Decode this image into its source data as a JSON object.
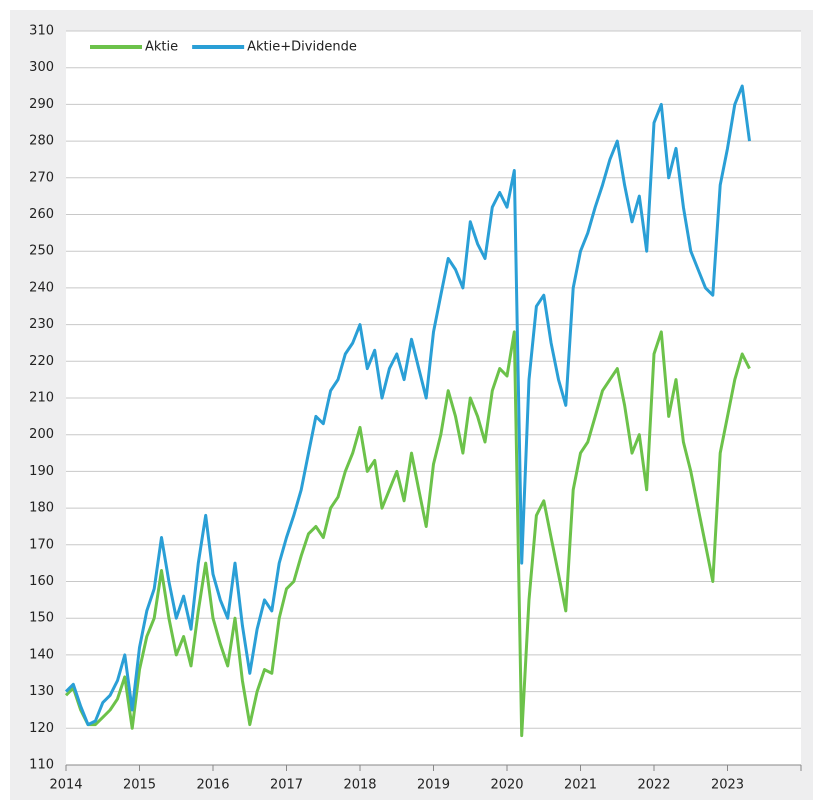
{
  "chart_data": {
    "type": "line",
    "x": [
      2014,
      2014.1,
      2014.2,
      2014.3,
      2014.4,
      2014.5,
      2014.6,
      2014.7,
      2014.8,
      2014.9,
      2015,
      2015.1,
      2015.2,
      2015.3,
      2015.4,
      2015.5,
      2015.6,
      2015.7,
      2015.8,
      2015.9,
      2016,
      2016.1,
      2016.2,
      2016.3,
      2016.4,
      2016.5,
      2016.6,
      2016.7,
      2016.8,
      2016.9,
      2017,
      2017.1,
      2017.2,
      2017.3,
      2017.4,
      2017.5,
      2017.6,
      2017.7,
      2017.8,
      2017.9,
      2018,
      2018.1,
      2018.2,
      2018.3,
      2018.4,
      2018.5,
      2018.6,
      2018.7,
      2018.8,
      2018.9,
      2019,
      2019.1,
      2019.2,
      2019.3,
      2019.4,
      2019.5,
      2019.6,
      2019.7,
      2019.8,
      2019.9,
      2020,
      2020.1,
      2020.2,
      2020.3,
      2020.4,
      2020.5,
      2020.6,
      2020.7,
      2020.8,
      2020.9,
      2021,
      2021.1,
      2021.2,
      2021.3,
      2021.4,
      2021.5,
      2021.6,
      2021.7,
      2021.8,
      2021.9,
      2022,
      2022.1,
      2022.2,
      2022.3,
      2022.4,
      2022.5,
      2022.6,
      2022.7,
      2022.8,
      2022.9,
      2023,
      2023.1,
      2023.2,
      2023.3
    ],
    "series": [
      {
        "name": "Aktie",
        "color": "#6cc24a",
        "values": [
          129,
          131,
          125,
          121,
          121,
          123,
          125,
          128,
          134,
          120,
          136,
          145,
          150,
          163,
          150,
          140,
          145,
          137,
          152,
          165,
          150,
          143,
          137,
          150,
          133,
          121,
          130,
          136,
          135,
          150,
          158,
          160,
          167,
          173,
          175,
          172,
          180,
          183,
          190,
          195,
          202,
          190,
          193,
          180,
          185,
          190,
          182,
          195,
          185,
          175,
          192,
          200,
          212,
          205,
          195,
          210,
          205,
          198,
          212,
          218,
          216,
          228,
          118,
          155,
          178,
          182,
          172,
          162,
          152,
          185,
          195,
          198,
          205,
          212,
          215,
          218,
          208,
          195,
          200,
          185,
          222,
          228,
          205,
          215,
          198,
          190,
          180,
          170,
          160,
          195,
          205,
          215,
          222,
          218
        ]
      },
      {
        "name": "Aktie+Dividende",
        "color": "#2a9fd6",
        "values": [
          130,
          132,
          126,
          121,
          122,
          127,
          129,
          133,
          140,
          125,
          142,
          152,
          158,
          172,
          160,
          150,
          156,
          147,
          165,
          178,
          162,
          155,
          150,
          165,
          148,
          135,
          147,
          155,
          152,
          165,
          172,
          178,
          185,
          195,
          205,
          203,
          212,
          215,
          222,
          225,
          230,
          218,
          223,
          210,
          218,
          222,
          215,
          226,
          218,
          210,
          228,
          238,
          248,
          245,
          240,
          258,
          252,
          248,
          262,
          266,
          262,
          272,
          165,
          215,
          235,
          238,
          225,
          215,
          208,
          240,
          250,
          255,
          262,
          268,
          275,
          280,
          268,
          258,
          265,
          250,
          285,
          290,
          270,
          278,
          262,
          250,
          245,
          240,
          238,
          268,
          278,
          290,
          295,
          280
        ]
      }
    ],
    "xlim": [
      2014,
      2024
    ],
    "xticks": [
      2014,
      2015,
      2016,
      2017,
      2018,
      2019,
      2020,
      2021,
      2022,
      2023
    ],
    "ylim": [
      110,
      310
    ],
    "yticks": [
      110,
      120,
      130,
      140,
      150,
      160,
      170,
      180,
      190,
      200,
      210,
      220,
      230,
      240,
      250,
      260,
      270,
      280,
      290,
      300,
      310
    ],
    "grid": true,
    "legend": "upper left"
  }
}
